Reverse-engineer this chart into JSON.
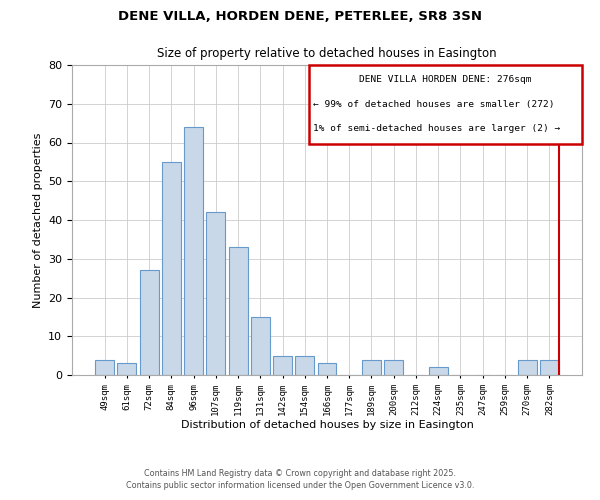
{
  "title": "DENE VILLA, HORDEN DENE, PETERLEE, SR8 3SN",
  "subtitle": "Size of property relative to detached houses in Easington",
  "xlabel": "Distribution of detached houses by size in Easington",
  "ylabel": "Number of detached properties",
  "bar_labels": [
    "49sqm",
    "61sqm",
    "72sqm",
    "84sqm",
    "96sqm",
    "107sqm",
    "119sqm",
    "131sqm",
    "142sqm",
    "154sqm",
    "166sqm",
    "177sqm",
    "189sqm",
    "200sqm",
    "212sqm",
    "224sqm",
    "235sqm",
    "247sqm",
    "259sqm",
    "270sqm",
    "282sqm"
  ],
  "bar_values": [
    4,
    3,
    27,
    55,
    64,
    42,
    33,
    15,
    5,
    5,
    3,
    0,
    4,
    4,
    0,
    2,
    0,
    0,
    0,
    4,
    4
  ],
  "bar_color": "#c8d8e8",
  "bar_edge_color": "#6699cc",
  "ylim": [
    0,
    80
  ],
  "yticks": [
    0,
    10,
    20,
    30,
    40,
    50,
    60,
    70,
    80
  ],
  "vline_color": "#cc0000",
  "annotation_title": "DENE VILLA HORDEN DENE: 276sqm",
  "annotation_line1": "← 99% of detached houses are smaller (272)",
  "annotation_line2": "1% of semi-detached houses are larger (2) →",
  "annotation_box_color": "#cc0000",
  "footer1": "Contains HM Land Registry data © Crown copyright and database right 2025.",
  "footer2": "Contains public sector information licensed under the Open Government Licence v3.0.",
  "background_color": "#ffffff",
  "grid_color": "#cccccc"
}
